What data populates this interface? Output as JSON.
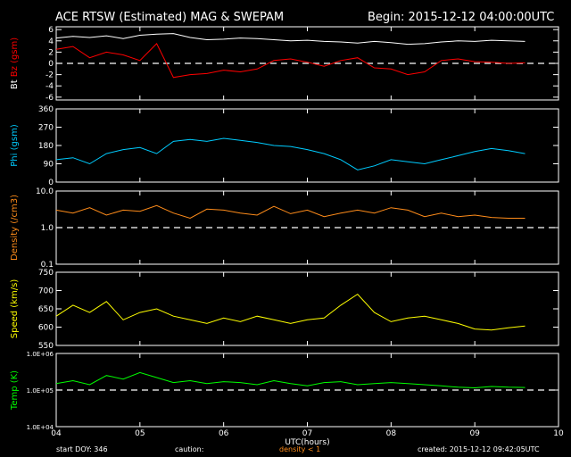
{
  "header": {
    "title": "ACE RTSW (Estimated) MAG & SWEPAM",
    "begin": "Begin: 2015-12-12 04:00:00UTC"
  },
  "footer": {
    "start_doy": "start DOY: 346",
    "caution": "caution:",
    "density_note": "density < 1",
    "created": "created: 2015-12-12 09:42:05UTC"
  },
  "colors": {
    "background": "#000000",
    "axes": "#ffffff",
    "bt": "#ffffff",
    "bz": "#ff0000",
    "phi": "#00ccff",
    "density": "#ff8c1a",
    "speed": "#ffff00",
    "temp": "#00ff00",
    "caution": "#ff8c1a"
  },
  "chart_data": [
    {
      "type": "line",
      "ylabel_parts": [
        "Bt",
        "Bz",
        "(gsm)"
      ],
      "ylim": [
        -6.5,
        6.5
      ],
      "yticks": [
        -6,
        -4,
        -2,
        0,
        2,
        4,
        6
      ],
      "ytick_labels": [
        "-6",
        "-4",
        "-2",
        "0",
        "2",
        "4",
        "6"
      ],
      "reference_line": 0,
      "series": [
        {
          "name": "Bt",
          "color": "#ffffff",
          "x": [
            4.0,
            4.2,
            4.4,
            4.6,
            4.8,
            5.0,
            5.2,
            5.4,
            5.6,
            5.8,
            6.0,
            6.2,
            6.4,
            6.6,
            6.8,
            7.0,
            7.2,
            7.4,
            7.6,
            7.8,
            8.0,
            8.2,
            8.4,
            8.6,
            8.8,
            9.0,
            9.2,
            9.4,
            9.6
          ],
          "y": [
            4.5,
            4.8,
            4.6,
            4.9,
            4.4,
            5.0,
            5.2,
            5.3,
            4.6,
            4.2,
            4.3,
            4.5,
            4.4,
            4.2,
            4.0,
            4.1,
            3.9,
            3.8,
            3.6,
            3.9,
            3.7,
            3.4,
            3.5,
            3.8,
            4.0,
            3.9,
            4.1,
            4.0,
            3.9
          ]
        },
        {
          "name": "Bz",
          "color": "#ff0000",
          "x": [
            4.0,
            4.2,
            4.4,
            4.6,
            4.8,
            5.0,
            5.2,
            5.4,
            5.6,
            5.8,
            6.0,
            6.2,
            6.4,
            6.6,
            6.8,
            7.0,
            7.2,
            7.4,
            7.6,
            7.8,
            8.0,
            8.2,
            8.4,
            8.6,
            8.8,
            9.0,
            9.2,
            9.4,
            9.6
          ],
          "y": [
            2.5,
            3.0,
            1.0,
            2.0,
            1.5,
            0.5,
            3.5,
            -2.5,
            -2.0,
            -1.8,
            -1.2,
            -1.5,
            -1.0,
            0.5,
            0.8,
            0.2,
            -0.5,
            0.5,
            1.0,
            -0.8,
            -1.0,
            -2.0,
            -1.5,
            0.5,
            0.8,
            0.3,
            0.2,
            0.0,
            0.1
          ]
        }
      ]
    },
    {
      "type": "line",
      "ylabel_parts": [
        "Phi",
        "(gsm)"
      ],
      "ylim": [
        0,
        360
      ],
      "yticks": [
        0,
        90,
        180,
        270,
        360
      ],
      "ytick_labels": [
        "0",
        "90",
        "180",
        "270",
        "360"
      ],
      "series": [
        {
          "name": "Phi",
          "color": "#00ccff",
          "x": [
            4.0,
            4.2,
            4.4,
            4.6,
            4.8,
            5.0,
            5.2,
            5.4,
            5.6,
            5.8,
            6.0,
            6.2,
            6.4,
            6.6,
            6.8,
            7.0,
            7.2,
            7.4,
            7.6,
            7.8,
            8.0,
            8.2,
            8.4,
            8.6,
            8.8,
            9.0,
            9.2,
            9.4,
            9.6
          ],
          "y": [
            110,
            120,
            90,
            140,
            160,
            170,
            140,
            200,
            210,
            200,
            215,
            205,
            195,
            180,
            175,
            160,
            140,
            110,
            60,
            80,
            110,
            100,
            90,
            110,
            130,
            150,
            165,
            155,
            140
          ]
        }
      ]
    },
    {
      "type": "line",
      "scale": "log",
      "ylabel_parts": [
        "Density",
        "(/cm3)"
      ],
      "ylim": [
        0.1,
        10.0
      ],
      "yticks": [
        0.1,
        1.0,
        10.0
      ],
      "ytick_labels": [
        "0.1",
        "1.0",
        "10.0"
      ],
      "reference_line": 1.0,
      "series": [
        {
          "name": "Density",
          "color": "#ff8c1a",
          "x": [
            4.0,
            4.2,
            4.4,
            4.6,
            4.8,
            5.0,
            5.2,
            5.4,
            5.6,
            5.8,
            6.0,
            6.2,
            6.4,
            6.6,
            6.8,
            7.0,
            7.2,
            7.4,
            7.6,
            7.8,
            8.0,
            8.2,
            8.4,
            8.6,
            8.8,
            9.0,
            9.2,
            9.4,
            9.6
          ],
          "y": [
            3.0,
            2.5,
            3.5,
            2.2,
            3.0,
            2.8,
            4.0,
            2.5,
            1.8,
            3.2,
            3.0,
            2.5,
            2.2,
            3.8,
            2.4,
            3.0,
            2.0,
            2.5,
            3.0,
            2.5,
            3.5,
            3.0,
            2.0,
            2.5,
            2.0,
            2.2,
            1.9,
            1.8,
            1.8
          ]
        }
      ]
    },
    {
      "type": "line",
      "ylabel_parts": [
        "Speed",
        "(km/s)"
      ],
      "ylim": [
        550,
        750
      ],
      "yticks": [
        550,
        600,
        650,
        700,
        750
      ],
      "ytick_labels": [
        "550",
        "600",
        "650",
        "700",
        "750"
      ],
      "series": [
        {
          "name": "Speed",
          "color": "#ffff00",
          "x": [
            4.0,
            4.2,
            4.4,
            4.6,
            4.8,
            5.0,
            5.2,
            5.4,
            5.6,
            5.8,
            6.0,
            6.2,
            6.4,
            6.6,
            6.8,
            7.0,
            7.2,
            7.4,
            7.6,
            7.8,
            8.0,
            8.2,
            8.4,
            8.6,
            8.8,
            9.0,
            9.2,
            9.4,
            9.6
          ],
          "y": [
            630,
            660,
            640,
            670,
            620,
            640,
            650,
            630,
            620,
            610,
            625,
            615,
            630,
            620,
            610,
            620,
            625,
            660,
            690,
            640,
            615,
            625,
            630,
            620,
            610,
            595,
            592,
            598,
            603
          ]
        }
      ]
    },
    {
      "type": "line",
      "scale": "log",
      "ylabel_parts": [
        "Temp",
        "(K)"
      ],
      "ylim": [
        10000,
        1000000
      ],
      "yticks": [
        10000,
        100000,
        1000000
      ],
      "ytick_labels": [
        "1.0E+04",
        "1.0E+05",
        "1.0E+06"
      ],
      "reference_line": 100000,
      "series": [
        {
          "name": "Temp",
          "color": "#00ff00",
          "x": [
            4.0,
            4.2,
            4.4,
            4.6,
            4.8,
            5.0,
            5.2,
            5.4,
            5.6,
            5.8,
            6.0,
            6.2,
            6.4,
            6.6,
            6.8,
            7.0,
            7.2,
            7.4,
            7.6,
            7.8,
            8.0,
            8.2,
            8.4,
            8.6,
            8.8,
            9.0,
            9.2,
            9.4,
            9.6
          ],
          "y": [
            150000,
            180000,
            140000,
            250000,
            200000,
            300000,
            220000,
            160000,
            180000,
            150000,
            170000,
            160000,
            140000,
            180000,
            150000,
            130000,
            160000,
            170000,
            140000,
            150000,
            160000,
            150000,
            140000,
            130000,
            120000,
            115000,
            125000,
            120000,
            118000
          ]
        }
      ]
    }
  ],
  "x_axis": {
    "xlabel": "UTC(hours)",
    "xlim": [
      4,
      10
    ],
    "xticks": [
      4,
      5,
      6,
      7,
      8,
      9,
      10
    ],
    "xtick_labels": [
      "04",
      "05",
      "06",
      "07",
      "08",
      "09",
      "10"
    ]
  }
}
